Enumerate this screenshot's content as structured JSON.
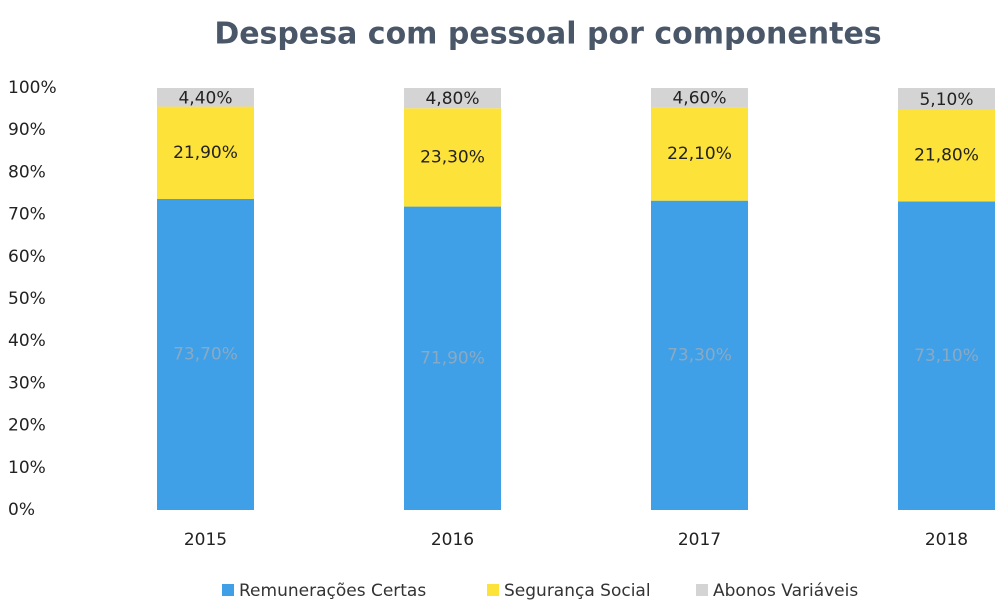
{
  "chart_data": {
    "type": "stacked_bar",
    "title": "Despesa com pessoal por componentes",
    "categories": [
      "2015",
      "2016",
      "2017",
      "2018"
    ],
    "series": [
      {
        "name": "Remunerações Certas",
        "color": "#3fa0e8",
        "values": [
          73.7,
          71.9,
          73.3,
          73.1
        ],
        "value_labels": [
          "73,70%",
          "71,90%",
          "73,30%",
          "73,10%"
        ]
      },
      {
        "name": "Segurança Social",
        "color": "#fde23a",
        "values": [
          21.9,
          23.3,
          22.1,
          21.8
        ],
        "value_labels": [
          "21,90%",
          "23,30%",
          "22,10%",
          "21,80%"
        ]
      },
      {
        "name": "Abonos Variáveis",
        "color": "#d4d4d4",
        "values": [
          4.4,
          4.8,
          4.6,
          5.1
        ],
        "value_labels": [
          "4,40%",
          "4,80%",
          "4,60%",
          "5,10%"
        ]
      }
    ],
    "ylim": [
      0,
      100
    ],
    "yticks": [
      {
        "value": 0,
        "label": "0%"
      },
      {
        "value": 10,
        "label": "10%"
      },
      {
        "value": 20,
        "label": "20%"
      },
      {
        "value": 30,
        "label": "30%"
      },
      {
        "value": 40,
        "label": "40%"
      },
      {
        "value": 50,
        "label": "50%"
      },
      {
        "value": 60,
        "label": "60%"
      },
      {
        "value": 70,
        "label": "70%"
      },
      {
        "value": 80,
        "label": "80%"
      },
      {
        "value": 90,
        "label": "90%"
      },
      {
        "value": 100,
        "label": "100%"
      }
    ],
    "grid": false,
    "legend": "bottom"
  }
}
